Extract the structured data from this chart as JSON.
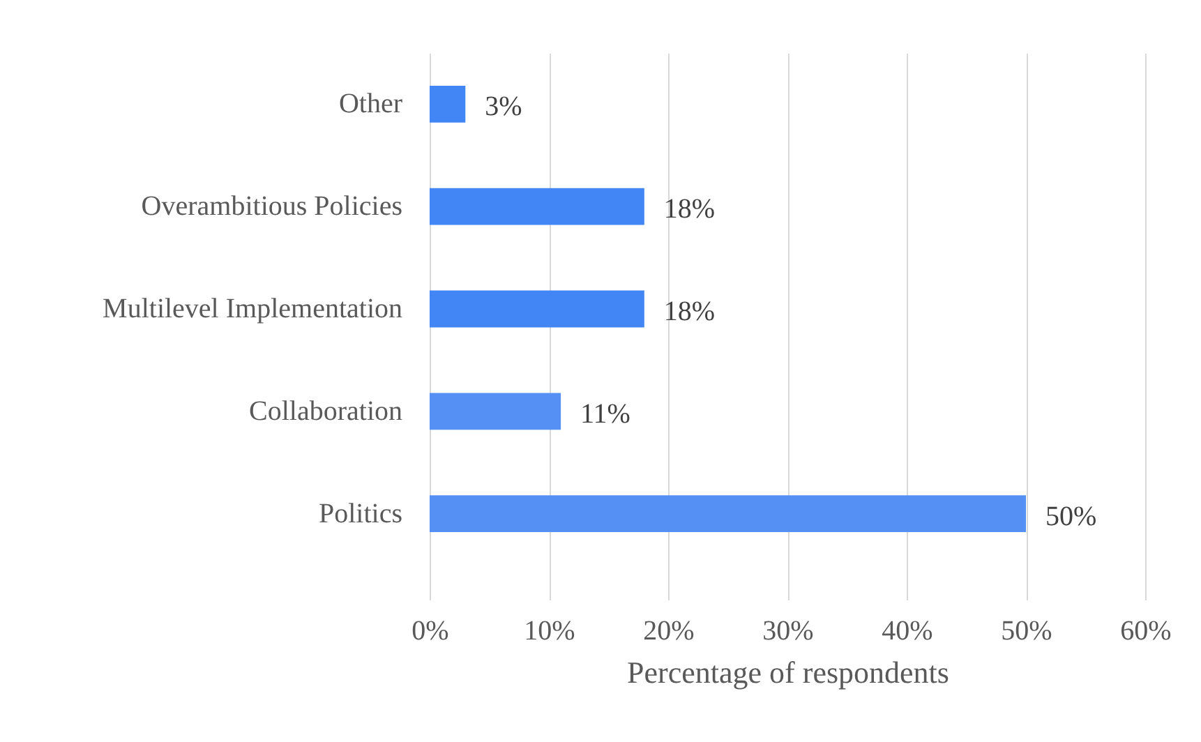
{
  "chart_data": {
    "type": "bar",
    "orientation": "horizontal",
    "xlabel": "Percentage of respondents",
    "categories": [
      "Other",
      "Overambitious Policies",
      "Multilevel Implementation",
      "Collaboration",
      "Politics"
    ],
    "values": [
      3,
      18,
      18,
      11,
      50
    ],
    "value_labels": [
      "3%",
      "18%",
      "18%",
      "11%",
      "50%"
    ],
    "colors": [
      "#4285f4",
      "#4285f4",
      "#4285f4",
      "#5591f5",
      "#5591f5"
    ],
    "xlim": [
      0,
      60
    ],
    "xticks": [
      {
        "value": 0,
        "label": "0%"
      },
      {
        "value": 10,
        "label": "10%"
      },
      {
        "value": 20,
        "label": "20%"
      },
      {
        "value": 30,
        "label": "30%"
      },
      {
        "value": 40,
        "label": "40%"
      },
      {
        "value": 50,
        "label": "50%"
      },
      {
        "value": 60,
        "label": "60%"
      }
    ],
    "grid": "x"
  }
}
